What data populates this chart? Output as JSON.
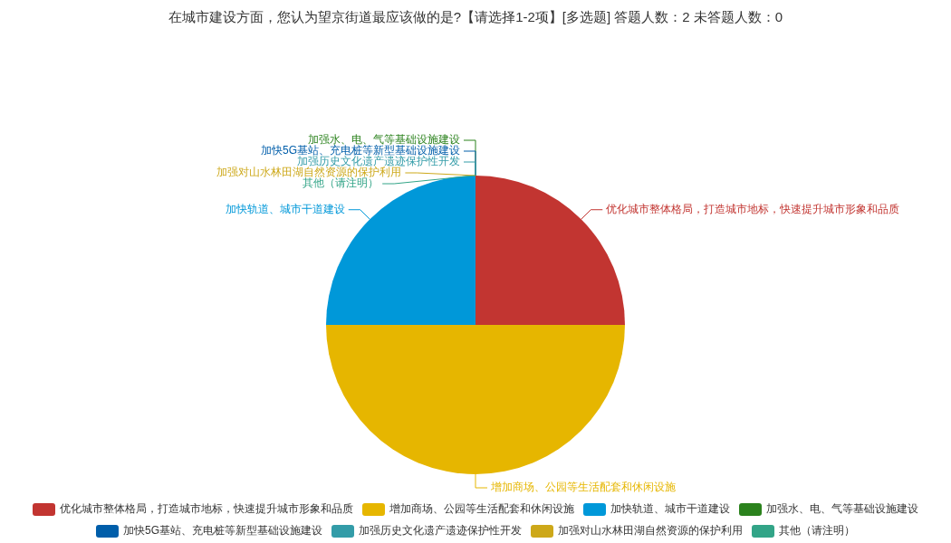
{
  "chart_data": {
    "type": "pie",
    "title": "在城市建设方面，您认为望京街道最应该做的是?【请选择1-2项】[多选题] 答题人数：2 未答题人数：0",
    "categories": [
      "优化城市整体格局，打造城市地标，快速提升城市形象和品质",
      "增加商场、公园等生活配套和休闲设施",
      "加快轨道、城市干道建设",
      "加强水、电、气等基础设施建设",
      "加快5G基站、充电桩等新型基础设施建设",
      "加强历史文化遗产遗迹保护性开发",
      "加强对山水林田湖自然资源的保护利用",
      "其他（请注明）"
    ],
    "values": [
      25,
      50,
      25,
      0,
      0,
      0,
      0,
      0
    ],
    "colors": [
      "#c23531",
      "#e6b600",
      "#0098d9",
      "#2b821d",
      "#005eaa",
      "#339ca8",
      "#cda819",
      "#32a487"
    ],
    "legend": "bottom"
  }
}
